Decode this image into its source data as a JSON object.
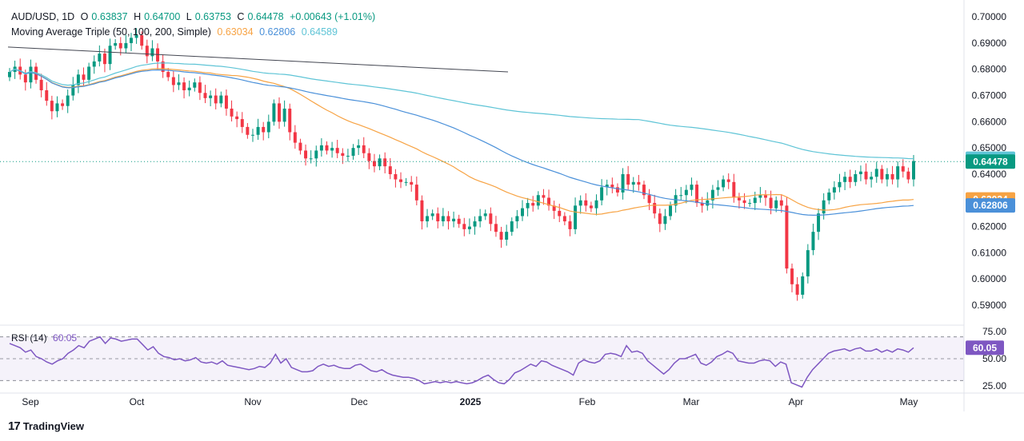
{
  "legend": {
    "symbol": "AUD/USD, 1D",
    "o_label": "O",
    "o_value": "0.63837",
    "h_label": "H",
    "h_value": "0.64700",
    "l_label": "L",
    "l_value": "0.63753",
    "c_label": "C",
    "c_value": "0.64478",
    "change": "+0.00643 (+1.01%)",
    "ma_title": "Moving Average Triple (50, 100, 200, Simple)",
    "ma50": "0.63034",
    "ma100": "0.62806",
    "ma200": "0.64589",
    "rsi_title": "RSI (14)",
    "rsi_value": "60.05"
  },
  "brand": "TradingView",
  "colors": {
    "up": "#089981",
    "down": "#f23645",
    "ma50": "#f7a344",
    "ma100": "#4a90d9",
    "ma200": "#5ec4d6",
    "rsi": "#7e57c2",
    "trendline": "#434651"
  },
  "chart_data": [
    {
      "type": "candlestick",
      "title": "AUD/USD, 1D",
      "y_axis_ticks": [
        "0.70000",
        "0.69000",
        "0.68000",
        "0.67000",
        "0.66000",
        "0.65000",
        "0.64000",
        "0.63000",
        "0.62000",
        "0.61000",
        "0.60000",
        "0.59000"
      ],
      "ylim": [
        0.583,
        0.704
      ],
      "x_axis_labels": [
        "Sep",
        "Oct",
        "Nov",
        "Dec",
        "2025",
        "Feb",
        "Mar",
        "Apr",
        "May"
      ],
      "price_tags": [
        {
          "label": "0.64589",
          "value": 0.64589,
          "color": "#5ec4d6"
        },
        {
          "label": "0.64478",
          "value": 0.64478,
          "color": "#089981"
        },
        {
          "label": "0.63034",
          "value": 0.63034,
          "color": "#f7a344"
        },
        {
          "label": "0.62806",
          "value": 0.62806,
          "color": "#4a90d9"
        }
      ],
      "closes": [
        0.679,
        0.681,
        0.678,
        0.675,
        0.681,
        0.676,
        0.672,
        0.668,
        0.664,
        0.667,
        0.666,
        0.67,
        0.674,
        0.678,
        0.676,
        0.681,
        0.683,
        0.686,
        0.682,
        0.689,
        0.69,
        0.688,
        0.69,
        0.692,
        0.693,
        0.689,
        0.685,
        0.688,
        0.683,
        0.679,
        0.677,
        0.674,
        0.675,
        0.672,
        0.673,
        0.675,
        0.671,
        0.669,
        0.67,
        0.667,
        0.67,
        0.665,
        0.662,
        0.661,
        0.658,
        0.655,
        0.655,
        0.658,
        0.656,
        0.66,
        0.667,
        0.66,
        0.665,
        0.656,
        0.652,
        0.649,
        0.646,
        0.646,
        0.649,
        0.651,
        0.649,
        0.65,
        0.648,
        0.647,
        0.647,
        0.65,
        0.651,
        0.648,
        0.645,
        0.643,
        0.646,
        0.643,
        0.64,
        0.638,
        0.637,
        0.637,
        0.636,
        0.63,
        0.622,
        0.624,
        0.625,
        0.622,
        0.624,
        0.622,
        0.623,
        0.621,
        0.619,
        0.62,
        0.622,
        0.624,
        0.625,
        0.621,
        0.618,
        0.615,
        0.618,
        0.622,
        0.624,
        0.627,
        0.629,
        0.628,
        0.632,
        0.631,
        0.628,
        0.626,
        0.624,
        0.622,
        0.619,
        0.628,
        0.63,
        0.628,
        0.627,
        0.63,
        0.635,
        0.636,
        0.635,
        0.633,
        0.64,
        0.636,
        0.637,
        0.636,
        0.632,
        0.629,
        0.625,
        0.621,
        0.624,
        0.628,
        0.632,
        0.632,
        0.634,
        0.636,
        0.629,
        0.628,
        0.63,
        0.634,
        0.635,
        0.638,
        0.637,
        0.631,
        0.63,
        0.629,
        0.629,
        0.631,
        0.632,
        0.631,
        0.627,
        0.63,
        0.628,
        0.604,
        0.598,
        0.594,
        0.601,
        0.611,
        0.618,
        0.625,
        0.63,
        0.633,
        0.635,
        0.637,
        0.639,
        0.637,
        0.64,
        0.641,
        0.638,
        0.639,
        0.642,
        0.638,
        0.64,
        0.638,
        0.643,
        0.641,
        0.638,
        0.645
      ],
      "moving_averages": [
        {
          "name": "MA 50",
          "value": 0.63034
        },
        {
          "name": "MA 100",
          "value": 0.62806
        },
        {
          "name": "MA 200",
          "value": 0.64589
        }
      ]
    },
    {
      "type": "line",
      "title": "RSI (14)",
      "y_axis_ticks": [
        "75.00",
        "50.00",
        "25.00"
      ],
      "ylim": [
        20,
        80
      ],
      "current_label": "60.05",
      "current": 60.05,
      "levels": [
        70,
        50,
        30
      ],
      "values": [
        64,
        62,
        60,
        56,
        58,
        52,
        50,
        47,
        45,
        48,
        50,
        55,
        58,
        62,
        60,
        66,
        68,
        70,
        64,
        69,
        68,
        66,
        67,
        68,
        68,
        63,
        58,
        61,
        55,
        52,
        51,
        49,
        50,
        48,
        49,
        51,
        47,
        46,
        47,
        45,
        48,
        44,
        43,
        42,
        41,
        40,
        41,
        43,
        42,
        46,
        54,
        46,
        50,
        42,
        40,
        38,
        38,
        39,
        43,
        45,
        43,
        44,
        42,
        41,
        41,
        44,
        45,
        42,
        39,
        38,
        40,
        37,
        35,
        34,
        33,
        33,
        32,
        30,
        27,
        28,
        29,
        28,
        29,
        28,
        29,
        28,
        27,
        28,
        30,
        33,
        35,
        31,
        28,
        27,
        31,
        37,
        39,
        42,
        45,
        43,
        48,
        47,
        44,
        42,
        40,
        38,
        35,
        46,
        49,
        47,
        46,
        48,
        54,
        55,
        54,
        52,
        62,
        56,
        57,
        55,
        48,
        44,
        40,
        36,
        40,
        46,
        50,
        50,
        52,
        54,
        46,
        44,
        47,
        52,
        54,
        57,
        55,
        48,
        47,
        46,
        46,
        48,
        49,
        48,
        43,
        47,
        45,
        28,
        26,
        24,
        33,
        40,
        45,
        50,
        55,
        57,
        58,
        59,
        57,
        59,
        60,
        57,
        57,
        59,
        56,
        58,
        56,
        59,
        58,
        56,
        60
      ]
    }
  ]
}
